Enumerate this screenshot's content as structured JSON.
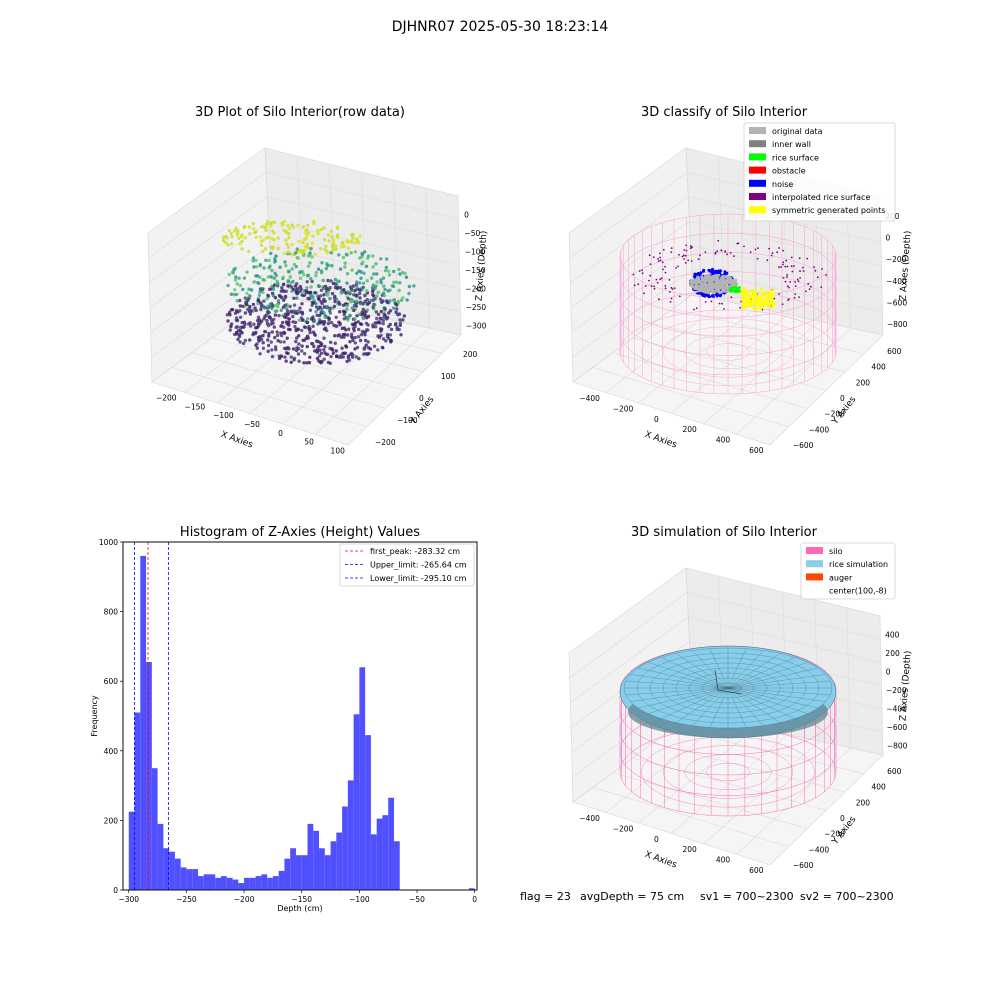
{
  "figure": {
    "suptitle": "DJHNR07 2025-05-30 18:23:14",
    "footer": {
      "flag": "flag = 23",
      "avg_depth": "avgDepth = 75 cm",
      "sv1": "sv1 = 700~2300",
      "sv2": "sv2 = 700~2300"
    }
  },
  "chart_data": [
    {
      "type": "scatter",
      "projection": "3d",
      "title": "3D Plot of Silo Interior(row data)",
      "xlabel": "X Axies",
      "ylabel": "Y Axies",
      "zlabel": "Z Axies (Depth)",
      "x_ticks": [
        "−200",
        "−150",
        "−100",
        "−50",
        "0",
        "50",
        "100"
      ],
      "y_ticks": [
        "−200",
        "−100",
        "0",
        "100",
        "200"
      ],
      "z_ticks": [
        "0",
        "−50",
        "−100",
        "−150",
        "−200",
        "−250",
        "−300"
      ],
      "colormap": "viridis",
      "zlim": [
        -310,
        0
      ]
    },
    {
      "type": "scatter",
      "projection": "3d",
      "title": "3D classify of Silo Interior",
      "xlabel": "X Axies",
      "ylabel": "Y Axies",
      "zlabel": "Z Axies (Depth)",
      "x_ticks": [
        "−400",
        "−200",
        "0",
        "200",
        "400",
        "600"
      ],
      "y_ticks": [
        "−600",
        "−400",
        "−200",
        "0",
        "200",
        "400",
        "600"
      ],
      "z_ticks": [
        "200",
        "0",
        "−200",
        "−400",
        "−600",
        "−800"
      ],
      "legend": {
        "placement": "top-right",
        "entries": [
          {
            "label": "original data",
            "color": "#b3b3b3"
          },
          {
            "label": "inner wall",
            "color": "#808080"
          },
          {
            "label": "rice surface",
            "color": "#00ff00"
          },
          {
            "label": "obstacle",
            "color": "#ff0000"
          },
          {
            "label": "noise",
            "color": "#0000ff"
          },
          {
            "label": "interpolated rice surface",
            "color": "#800080"
          },
          {
            "label": "symmetric generated points",
            "color": "#ffff00"
          }
        ]
      },
      "silo_color": "#ff9ecf"
    },
    {
      "type": "bar",
      "title": "Histogram of Z-Axies (Height) Values",
      "xlabel": "Depth (cm)",
      "ylabel": "Frequency",
      "xlim": [
        -305,
        2
      ],
      "ylim": [
        0,
        1000
      ],
      "x_ticks": [
        -300,
        -250,
        -200,
        -150,
        -100,
        -50,
        0
      ],
      "y_ticks": [
        0,
        200,
        400,
        600,
        800,
        1000
      ],
      "bin_width": 5,
      "bar_color": "#5050ff",
      "bins": [
        {
          "x": -297.5,
          "v": 225
        },
        {
          "x": -292.5,
          "v": 510
        },
        {
          "x": -287.5,
          "v": 960
        },
        {
          "x": -282.5,
          "v": 655
        },
        {
          "x": -277.5,
          "v": 350
        },
        {
          "x": -272.5,
          "v": 190
        },
        {
          "x": -267.5,
          "v": 120
        },
        {
          "x": -262.5,
          "v": 110
        },
        {
          "x": -257.5,
          "v": 90
        },
        {
          "x": -252.5,
          "v": 65
        },
        {
          "x": -247.5,
          "v": 60
        },
        {
          "x": -242.5,
          "v": 60
        },
        {
          "x": -237.5,
          "v": 40
        },
        {
          "x": -232.5,
          "v": 45
        },
        {
          "x": -227.5,
          "v": 45
        },
        {
          "x": -222.5,
          "v": 35
        },
        {
          "x": -217.5,
          "v": 40
        },
        {
          "x": -212.5,
          "v": 35
        },
        {
          "x": -207.5,
          "v": 30
        },
        {
          "x": -202.5,
          "v": 20
        },
        {
          "x": -197.5,
          "v": 35
        },
        {
          "x": -192.5,
          "v": 35
        },
        {
          "x": -187.5,
          "v": 40
        },
        {
          "x": -182.5,
          "v": 45
        },
        {
          "x": -177.5,
          "v": 35
        },
        {
          "x": -172.5,
          "v": 40
        },
        {
          "x": -167.5,
          "v": 55
        },
        {
          "x": -162.5,
          "v": 90
        },
        {
          "x": -157.5,
          "v": 120
        },
        {
          "x": -152.5,
          "v": 100
        },
        {
          "x": -147.5,
          "v": 100
        },
        {
          "x": -142.5,
          "v": 190
        },
        {
          "x": -137.5,
          "v": 170
        },
        {
          "x": -132.5,
          "v": 120
        },
        {
          "x": -127.5,
          "v": 100
        },
        {
          "x": -122.5,
          "v": 140
        },
        {
          "x": -117.5,
          "v": 165
        },
        {
          "x": -112.5,
          "v": 240
        },
        {
          "x": -107.5,
          "v": 315
        },
        {
          "x": -102.5,
          "v": 505
        },
        {
          "x": -97.5,
          "v": 640
        },
        {
          "x": -92.5,
          "v": 445
        },
        {
          "x": -87.5,
          "v": 160
        },
        {
          "x": -82.5,
          "v": 205
        },
        {
          "x": -77.5,
          "v": 215
        },
        {
          "x": -72.5,
          "v": 265
        },
        {
          "x": -67.5,
          "v": 140
        },
        {
          "x": -2.5,
          "v": 5
        }
      ],
      "vlines": [
        {
          "x": -283.32,
          "color": "#ff0000",
          "label": "first_peak: -283.32 cm"
        },
        {
          "x": -265.64,
          "color": "#0000ff",
          "label": "Upper_limit: -265.64 cm"
        },
        {
          "x": -295.1,
          "color": "#0000ff",
          "label": "Lower_limit: -295.10 cm"
        }
      ],
      "legend_placement": "top-right"
    },
    {
      "type": "surface",
      "projection": "3d",
      "title": "3D simulation of Silo Interior",
      "xlabel": "X Axies",
      "ylabel": "Y Axies",
      "zlabel": "Z Axies (Depth)",
      "x_ticks": [
        "−400",
        "−200",
        "0",
        "200",
        "400",
        "600"
      ],
      "y_ticks": [
        "−600",
        "−400",
        "−200",
        "0",
        "200",
        "400",
        "600"
      ],
      "z_ticks": [
        "400",
        "200",
        "0",
        "−200",
        "−400",
        "−600",
        "−800"
      ],
      "legend": {
        "placement": "top-right",
        "entries": [
          {
            "label": "silo",
            "color": "#ff69b4"
          },
          {
            "label": "rice simulation",
            "color": "#87ceeb"
          },
          {
            "label": "auger",
            "color": "#ff4500"
          },
          {
            "label": "center(100,-8)",
            "color": "none"
          }
        ]
      }
    }
  ]
}
